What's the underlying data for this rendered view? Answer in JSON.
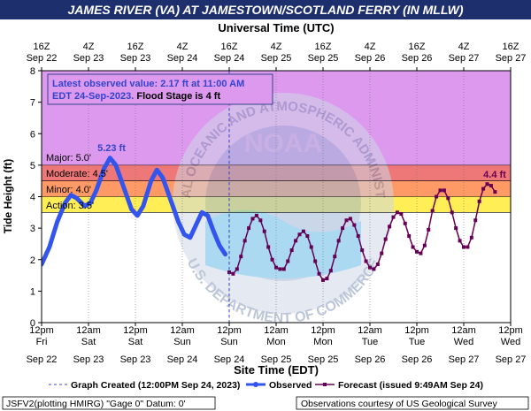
{
  "title": "JAMES RIVER (VA) AT JAMESTOWN/SCOTLAND FERRY (IN MLLW)",
  "top_axis_title": "Universal Time (UTC)",
  "bottom_axis_title": "Site Time (EDT)",
  "y_axis_title": "Tide Height (ft)",
  "top_ticks": [
    {
      "time": "16Z",
      "date": "Sep 22"
    },
    {
      "time": "4Z",
      "date": "Sep 23"
    },
    {
      "time": "16Z",
      "date": "Sep 23"
    },
    {
      "time": "4Z",
      "date": "Sep 24"
    },
    {
      "time": "16Z",
      "date": "Sep 24"
    },
    {
      "time": "4Z",
      "date": "Sep 25"
    },
    {
      "time": "16Z",
      "date": "Sep 25"
    },
    {
      "time": "4Z",
      "date": "Sep 26"
    },
    {
      "time": "16Z",
      "date": "Sep 26"
    },
    {
      "time": "4Z",
      "date": "Sep 27"
    },
    {
      "time": "16Z",
      "date": "Sep 27"
    }
  ],
  "bottom_ticks": [
    {
      "time": "12pm",
      "day": "Fri",
      "date": "Sep 22"
    },
    {
      "time": "12am",
      "day": "Sat",
      "date": "Sep 23"
    },
    {
      "time": "12pm",
      "day": "Sat",
      "date": "Sep 23"
    },
    {
      "time": "12am",
      "day": "Sun",
      "date": "Sep 24"
    },
    {
      "time": "12pm",
      "day": "Sun",
      "date": "Sep 24"
    },
    {
      "time": "12am",
      "day": "Mon",
      "date": "Sep 25"
    },
    {
      "time": "12pm",
      "day": "Mon",
      "date": "Sep 25"
    },
    {
      "time": "12am",
      "day": "Tue",
      "date": "Sep 26"
    },
    {
      "time": "12pm",
      "day": "Tue",
      "date": "Sep 26"
    },
    {
      "time": "12am",
      "day": "Wed",
      "date": "Sep 27"
    },
    {
      "time": "12pm",
      "day": "Wed",
      "date": "Sep 27"
    }
  ],
  "info_box": {
    "line1": "Latest observed value: 2.17 ft at 11:00 AM",
    "line2_a": "EDT 24-Sep-2023. ",
    "line2_b": "Flood Stage is 4 ft"
  },
  "stage_labels": {
    "major": "Major: 5.0'",
    "moderate": "Moderate: 4.5'",
    "minor": "Minor: 4.0'",
    "action": "Action: 3.5'"
  },
  "peak_label": "5.23 ft",
  "forecast_peak_label": "4.4 ft",
  "watermark": {
    "text_top": "NATIONAL OCEANIC AND ATMOSPHERIC ADMINISTRATION",
    "text_bottom": "U.S. DEPARTMENT OF COMMERCE",
    "center": "NOAA"
  },
  "legend": {
    "graph_created": "Graph Created (12:00PM Sep 24, 2023)",
    "observed": "Observed",
    "forecast": "Forecast (issued 9:49AM Sep 24)"
  },
  "footer": {
    "left": "JSFV2(plotting HMIRG) \"Gage 0\" Datum: 0'",
    "right": "Observations courtesy of US Geological Survey"
  },
  "colors": {
    "title_bg": "#1e2f6e",
    "band_top": "#dd99ee",
    "band_major": "#ee7777",
    "band_moderate": "#ff9966",
    "band_minor": "#ffee55",
    "observed": "#3355ee",
    "forecast": "#660055",
    "info_text": "#3344cc"
  },
  "chart_data": {
    "type": "line",
    "y_unit": "ft",
    "ylim": [
      0,
      8
    ],
    "y_ticks": [
      0,
      1,
      2,
      3,
      4,
      5,
      6,
      7,
      8
    ],
    "x_range": [
      "Sep 22 12:00 PM EDT",
      "Sep 27 12:00 PM EDT"
    ],
    "flood_stages": {
      "action": 3.5,
      "minor": 4.0,
      "moderate": 4.5,
      "major": 5.0
    },
    "graph_created": "Sep 24 12:00 PM EDT",
    "series": [
      {
        "name": "Observed",
        "points": [
          {
            "x": "Sep 22 12:00 PM",
            "y": 1.85
          },
          {
            "x": "Sep 22 2:00 PM",
            "y": 2.4
          },
          {
            "x": "Sep 22 4:00 PM",
            "y": 3.2
          },
          {
            "x": "Sep 22 6:00 PM",
            "y": 3.8
          },
          {
            "x": "Sep 22 7:30 PM",
            "y": 4.05
          },
          {
            "x": "Sep 22 9:00 PM",
            "y": 3.95
          },
          {
            "x": "Sep 22 11:00 PM",
            "y": 3.7
          },
          {
            "x": "Sep 23 12:30 AM",
            "y": 3.8
          },
          {
            "x": "Sep 23 2:00 AM",
            "y": 4.2
          },
          {
            "x": "Sep 23 4:00 AM",
            "y": 4.9
          },
          {
            "x": "Sep 23 5:30 AM",
            "y": 5.23
          },
          {
            "x": "Sep 23 7:00 AM",
            "y": 5.0
          },
          {
            "x": "Sep 23 9:00 AM",
            "y": 4.3
          },
          {
            "x": "Sep 23 11:00 AM",
            "y": 3.6
          },
          {
            "x": "Sep 23 12:30 PM",
            "y": 3.4
          },
          {
            "x": "Sep 23 2:00 PM",
            "y": 3.7
          },
          {
            "x": "Sep 23 4:00 PM",
            "y": 4.5
          },
          {
            "x": "Sep 23 5:30 PM",
            "y": 4.85
          },
          {
            "x": "Sep 23 7:00 PM",
            "y": 4.6
          },
          {
            "x": "Sep 23 9:00 PM",
            "y": 3.9
          },
          {
            "x": "Sep 23 11:00 PM",
            "y": 3.2
          },
          {
            "x": "Sep 24 12:30 AM",
            "y": 2.8
          },
          {
            "x": "Sep 24 2:00 AM",
            "y": 2.7
          },
          {
            "x": "Sep 24 3:30 AM",
            "y": 3.1
          },
          {
            "x": "Sep 24 5:00 AM",
            "y": 3.5
          },
          {
            "x": "Sep 24 6:30 AM",
            "y": 3.4
          },
          {
            "x": "Sep 24 8:00 AM",
            "y": 2.9
          },
          {
            "x": "Sep 24 9:30 AM",
            "y": 2.45
          },
          {
            "x": "Sep 24 11:00 AM",
            "y": 2.17
          }
        ]
      },
      {
        "name": "Forecast",
        "points": [
          {
            "x": "Sep 24 12:00 PM",
            "y": 1.6
          },
          {
            "x": "Sep 24 1:00 PM",
            "y": 1.55
          },
          {
            "x": "Sep 24 2:00 PM",
            "y": 1.7
          },
          {
            "x": "Sep 24 3:00 PM",
            "y": 2.1
          },
          {
            "x": "Sep 24 4:00 PM",
            "y": 2.6
          },
          {
            "x": "Sep 24 5:00 PM",
            "y": 3.0
          },
          {
            "x": "Sep 24 6:00 PM",
            "y": 3.3
          },
          {
            "x": "Sep 24 7:00 PM",
            "y": 3.4
          },
          {
            "x": "Sep 24 8:00 PM",
            "y": 3.25
          },
          {
            "x": "Sep 24 9:00 PM",
            "y": 2.9
          },
          {
            "x": "Sep 24 10:00 PM",
            "y": 2.4
          },
          {
            "x": "Sep 24 11:00 PM",
            "y": 2.0
          },
          {
            "x": "Sep 25 12:00 AM",
            "y": 1.75
          },
          {
            "x": "Sep 25 1:00 AM",
            "y": 1.7
          },
          {
            "x": "Sep 25 2:00 AM",
            "y": 1.7
          },
          {
            "x": "Sep 25 3:00 AM",
            "y": 1.95
          },
          {
            "x": "Sep 25 4:00 AM",
            "y": 2.3
          },
          {
            "x": "Sep 25 5:00 AM",
            "y": 2.6
          },
          {
            "x": "Sep 25 6:00 AM",
            "y": 2.8
          },
          {
            "x": "Sep 25 7:00 AM",
            "y": 2.9
          },
          {
            "x": "Sep 25 8:00 AM",
            "y": 2.75
          },
          {
            "x": "Sep 25 9:00 AM",
            "y": 2.4
          },
          {
            "x": "Sep 25 10:00 AM",
            "y": 1.95
          },
          {
            "x": "Sep 25 11:00 AM",
            "y": 1.55
          },
          {
            "x": "Sep 25 12:00 PM",
            "y": 1.35
          },
          {
            "x": "Sep 25 1:00 PM",
            "y": 1.4
          },
          {
            "x": "Sep 25 2:00 PM",
            "y": 1.65
          },
          {
            "x": "Sep 25 3:00 PM",
            "y": 2.1
          },
          {
            "x": "Sep 25 4:00 PM",
            "y": 2.6
          },
          {
            "x": "Sep 25 5:00 PM",
            "y": 3.0
          },
          {
            "x": "Sep 25 6:00 PM",
            "y": 3.25
          },
          {
            "x": "Sep 25 7:00 PM",
            "y": 3.3
          },
          {
            "x": "Sep 25 8:00 PM",
            "y": 3.1
          },
          {
            "x": "Sep 25 9:00 PM",
            "y": 2.75
          },
          {
            "x": "Sep 25 10:00 PM",
            "y": 2.3
          },
          {
            "x": "Sep 25 11:00 PM",
            "y": 1.95
          },
          {
            "x": "Sep 26 12:00 AM",
            "y": 1.75
          },
          {
            "x": "Sep 26 1:00 AM",
            "y": 1.7
          },
          {
            "x": "Sep 26 2:00 AM",
            "y": 1.85
          },
          {
            "x": "Sep 26 3:00 AM",
            "y": 2.2
          },
          {
            "x": "Sep 26 4:00 AM",
            "y": 2.65
          },
          {
            "x": "Sep 26 5:00 AM",
            "y": 3.05
          },
          {
            "x": "Sep 26 6:00 AM",
            "y": 3.35
          },
          {
            "x": "Sep 26 7:00 AM",
            "y": 3.5
          },
          {
            "x": "Sep 26 8:00 AM",
            "y": 3.45
          },
          {
            "x": "Sep 26 9:00 AM",
            "y": 3.15
          },
          {
            "x": "Sep 26 10:00 AM",
            "y": 2.75
          },
          {
            "x": "Sep 26 11:00 AM",
            "y": 2.4
          },
          {
            "x": "Sep 26 12:00 PM",
            "y": 2.25
          },
          {
            "x": "Sep 26 1:00 PM",
            "y": 2.2
          },
          {
            "x": "Sep 26 2:00 PM",
            "y": 2.45
          },
          {
            "x": "Sep 26 3:00 PM",
            "y": 2.95
          },
          {
            "x": "Sep 26 4:00 PM",
            "y": 3.55
          },
          {
            "x": "Sep 26 5:00 PM",
            "y": 4.0
          },
          {
            "x": "Sep 26 6:00 PM",
            "y": 4.2
          },
          {
            "x": "Sep 26 7:00 PM",
            "y": 4.2
          },
          {
            "x": "Sep 26 8:00 PM",
            "y": 3.95
          },
          {
            "x": "Sep 26 9:00 PM",
            "y": 3.5
          },
          {
            "x": "Sep 26 10:00 PM",
            "y": 3.0
          },
          {
            "x": "Sep 26 11:00 PM",
            "y": 2.6
          },
          {
            "x": "Sep 27 12:00 AM",
            "y": 2.4
          },
          {
            "x": "Sep 27 1:00 AM",
            "y": 2.4
          },
          {
            "x": "Sep 27 2:00 AM",
            "y": 2.7
          },
          {
            "x": "Sep 27 3:00 AM",
            "y": 3.25
          },
          {
            "x": "Sep 27 4:00 AM",
            "y": 3.85
          },
          {
            "x": "Sep 27 5:00 AM",
            "y": 4.25
          },
          {
            "x": "Sep 27 6:00 AM",
            "y": 4.4
          },
          {
            "x": "Sep 27 7:00 AM",
            "y": 4.35
          },
          {
            "x": "Sep 27 8:00 AM",
            "y": 4.15
          }
        ]
      }
    ]
  }
}
